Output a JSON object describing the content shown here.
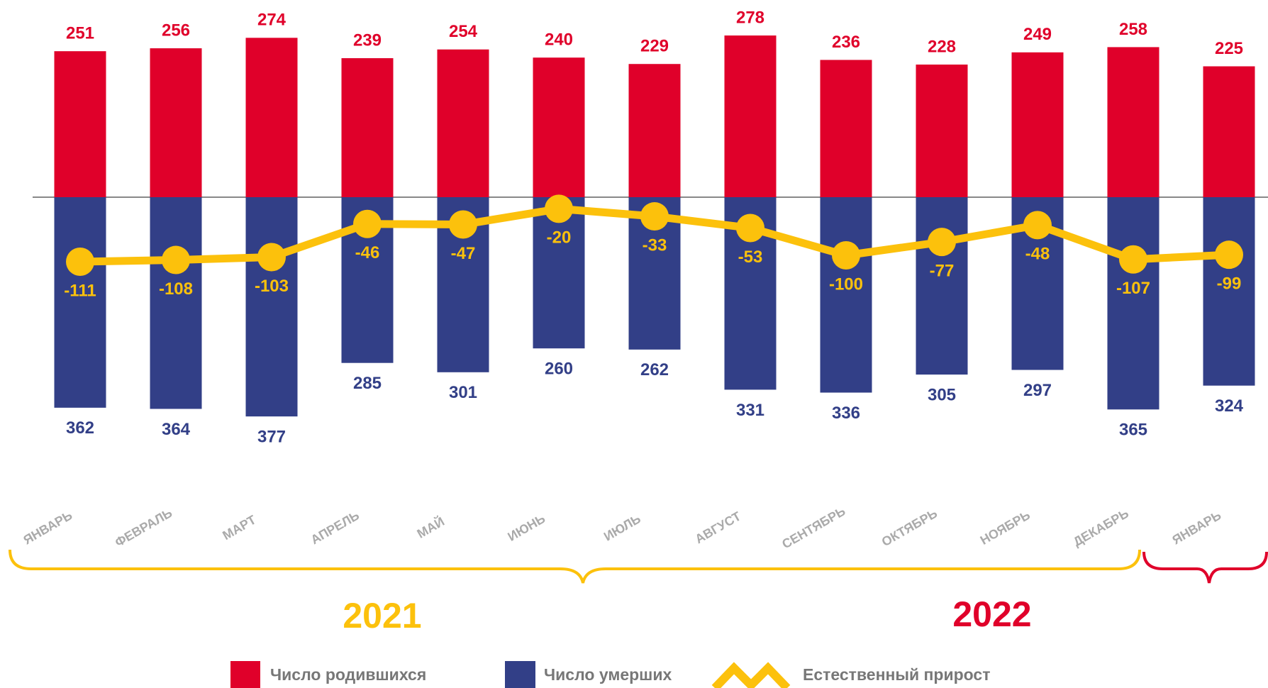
{
  "chart_data": {
    "type": "bar_line",
    "categories": [
      "ЯНВАРЬ",
      "ФЕВРАЛЬ",
      "МАРТ",
      "АПРЕЛЬ",
      "МАЙ",
      "ИЮНЬ",
      "ИЮЛЬ",
      "АВГУСТ",
      "СЕНТЯБРЬ",
      "ОКТЯБРЬ",
      "НОЯБРЬ",
      "ДЕКАБРЬ",
      "ЯНВАРЬ"
    ],
    "series": [
      {
        "name": "Число родившихся",
        "color": "#e0002a",
        "values": [
          251,
          256,
          274,
          239,
          254,
          240,
          229,
          278,
          236,
          228,
          249,
          258,
          225
        ]
      },
      {
        "name": "Число умерших",
        "color": "#323f87",
        "values": [
          362,
          364,
          377,
          285,
          301,
          260,
          262,
          331,
          336,
          305,
          297,
          365,
          324
        ]
      },
      {
        "name": "Естественный прирост",
        "color": "#fcc10c",
        "values": [
          -111,
          -108,
          -103,
          -46,
          -47,
          -20,
          -33,
          -53,
          -100,
          -77,
          -48,
          -107,
          -99
        ]
      }
    ],
    "groups": [
      {
        "label": "2021",
        "color": "#fcc10c"
      },
      {
        "label": "2022",
        "color": "#e0002a"
      }
    ]
  }
}
